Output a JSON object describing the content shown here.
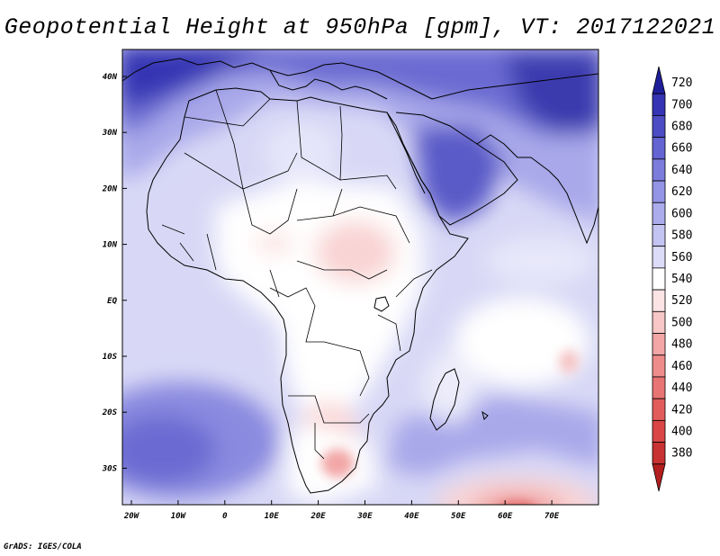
{
  "title": "Geopotential Height at 950hPa [gpm], VT: 2017122021",
  "credit": "GrADS: IGES/COLA",
  "map": {
    "region": "Africa and surrounding oceans",
    "lon_range": [
      -22,
      80
    ],
    "lat_range": [
      -37,
      45
    ],
    "lat_ticks": [
      "40N",
      "30N",
      "20N",
      "10N",
      "EQ",
      "10S",
      "20S",
      "30S"
    ],
    "lon_ticks": [
      "20W",
      "10W",
      "0",
      "10E",
      "20E",
      "30E",
      "40E",
      "50E",
      "60E",
      "70E"
    ]
  },
  "colorbar": {
    "levels": [
      "380",
      "400",
      "420",
      "440",
      "460",
      "480",
      "500",
      "520",
      "540",
      "560",
      "580",
      "600",
      "620",
      "640",
      "660",
      "680",
      "700",
      "720"
    ],
    "colors": [
      "#b31e1e",
      "#c83232",
      "#d84646",
      "#e25c5c",
      "#e87474",
      "#ee8c8c",
      "#f2a6a6",
      "#f7c6c6",
      "#fce4e4",
      "#ffffff",
      "#dcdcf8",
      "#c4c4f2",
      "#acacec",
      "#9494e6",
      "#7c7cdc",
      "#6464d2",
      "#4c4cc4",
      "#3434b4",
      "#1e1e9a"
    ]
  },
  "colors": {
    "blue_light": "#d8d8f6",
    "blue_mid": "#a8a8ea",
    "blue_dark": "#5a5ac8",
    "blue_darkest": "#2c2ca6",
    "pink_light": "#fbe2e2",
    "pink_mid": "#f3b6b6",
    "red_low": "#e87474"
  }
}
